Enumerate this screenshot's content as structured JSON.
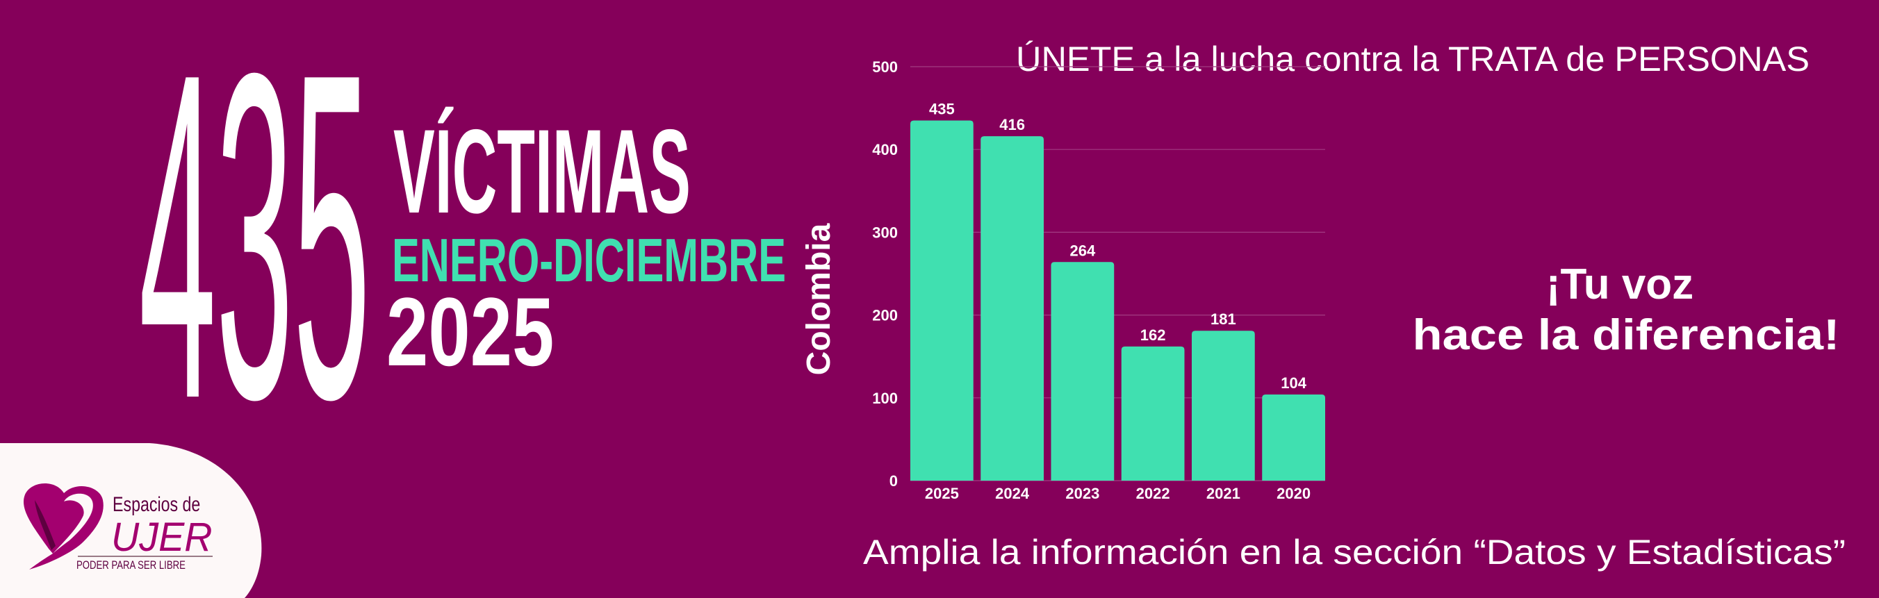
{
  "colors": {
    "background": "#85005A",
    "accent": "#40E0B0",
    "logo": "#A3006F",
    "logo_dark": "#5E0040"
  },
  "headline": {
    "number": "435",
    "label": "VÍCTIMAS",
    "period": "ENERO-DICIEMBRE",
    "year": "2025"
  },
  "top_text": "ÚNETE a la lucha contra la TRATA de PERSONAS",
  "side_text": {
    "line1": "¡Tu voz",
    "line2": "hace la diferencia!"
  },
  "bottom_text": "Amplia la información en la sección “Datos y Estadísticas”",
  "logo": {
    "line1": "Espacios de",
    "line2": "UJER",
    "tagline": "PODER PARA SER LIBRE"
  },
  "chart_data": {
    "type": "bar",
    "title": "",
    "xlabel": "",
    "ylabel": "Colombia",
    "categories": [
      "2025",
      "2024",
      "2023",
      "2022",
      "2021",
      "2020"
    ],
    "values": [
      435,
      416,
      264,
      162,
      181,
      104
    ],
    "ylim": [
      0,
      500
    ],
    "yticks": [
      "0",
      "100",
      "200",
      "300",
      "400",
      "500"
    ],
    "grid": true,
    "data_labels": true,
    "bar_color": "#40E0B0"
  }
}
